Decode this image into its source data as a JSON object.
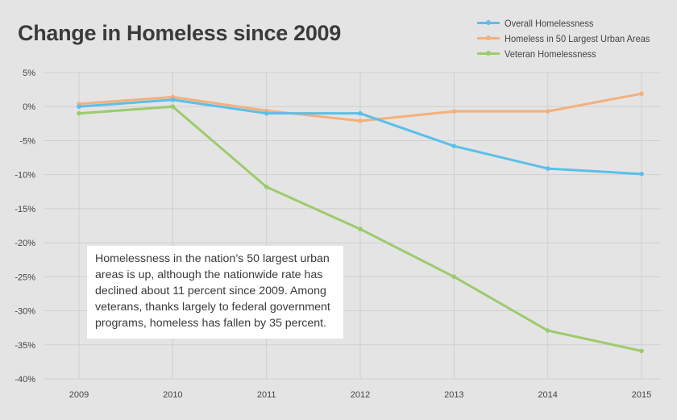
{
  "title": "Change in Homeless since 2009",
  "note": "Homelessness in the nation’s 50 largest urban areas is up, although the nationwide rate has declined about 11 percent since 2009. Among veterans, thanks largely to federal government programs, homeless has fallen by 35 percent.",
  "colors": {
    "overall": "#5bbfe9",
    "urban": "#f4b07a",
    "veteran": "#9ccb6c",
    "grid": "#cfcfd0"
  },
  "chart_data": {
    "type": "line",
    "title": "Change in Homeless since 2009",
    "xlabel": "",
    "ylabel": "",
    "categories": [
      "2009",
      "2010",
      "2011",
      "2012",
      "2013",
      "2014",
      "2015"
    ],
    "ylim": [
      -40,
      5
    ],
    "yticks": [
      5,
      0,
      -5,
      -10,
      -15,
      -20,
      -25,
      -30,
      -35,
      -40
    ],
    "ytick_labels": [
      "5%",
      "0%",
      "-5%",
      "-10%",
      "-15%",
      "-20%",
      "-25%",
      "-30%",
      "-35%",
      "-40%"
    ],
    "legend_position": "top-right",
    "series": [
      {
        "key": "overall",
        "name": "Overall Homelessness",
        "values": [
          0,
          1,
          -1,
          -1,
          -5.8,
          -9.1,
          -9.9
        ]
      },
      {
        "key": "urban",
        "name": "Homeless in 50 Largest Urban Areas",
        "values": [
          0.4,
          1.4,
          -0.6,
          -2.1,
          -0.7,
          -0.7,
          1.9
        ]
      },
      {
        "key": "veteran",
        "name": "Veteran Homelessness",
        "values": [
          -1,
          0,
          -11.8,
          -18,
          -25,
          -32.9,
          -35.9
        ]
      }
    ]
  }
}
